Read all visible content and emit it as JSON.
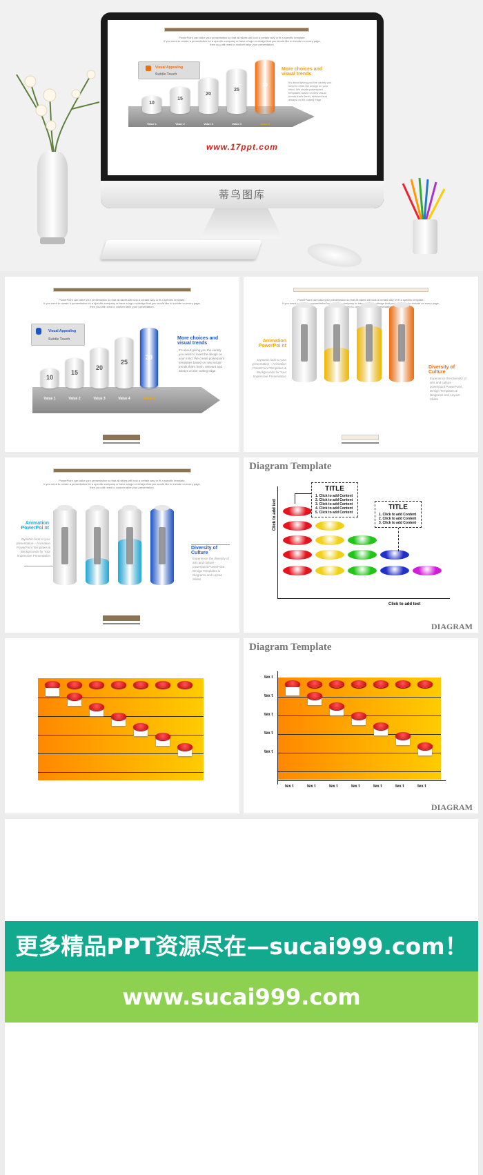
{
  "hero": {
    "watermark_brand": "www.17ppt.com",
    "monitor_chin_text": "蒂鸟图库",
    "slide": {
      "intro_lines": [
        "PowerPoint can tailor your presentation so that all slides will look a certain way or fit a specific template.",
        "If you need to create a presentation for a specific company or have a logo or design that you would like to include on every page,",
        "then you will need to custom tailor your presentation."
      ],
      "legend_title": "Visual Appealing",
      "legend_sub": "Subtle Touch",
      "heading": "More choices and visual trends",
      "body": "It's about giving you the variety you need to meet the design on your mind. We create powerpoint templates based on new visual trends that's fresh, relevant and always on the cutting edge.",
      "values": [
        "10",
        "15",
        "20",
        "25",
        "30"
      ],
      "value_labels": [
        "Value 1",
        "Value 2",
        "Value 3",
        "Value 4",
        "Value 5"
      ]
    }
  },
  "panels": {
    "p1": {
      "intro_lines": [
        "PowerPoint can tailor your presentation so that all slides will look a certain way or fit a specific template.",
        "If you need to create a presentation for a specific company or have a logo or design that you would like to include on every page,",
        "then you will need to custom tailor your presentation."
      ],
      "legend_title": "Visual Appealing",
      "legend_sub": "Subtle Touch",
      "heading": "More choices and visual trends",
      "body": "It's about giving you the variety you need to meet the design on your mind. We create powerpoint templates based on new visual trends that's fresh, relevant and always on the cutting edge.",
      "values": [
        "10",
        "15",
        "20",
        "25",
        "30"
      ],
      "value_labels": [
        "Value 1",
        "Value 2",
        "Value 3",
        "Value 4",
        "Value 5"
      ]
    },
    "p2": {
      "left_heading": "Animation PowerPoi nt",
      "left_body": "Dynamic look to your presentation – Animation PowerPoint Templates & Backgrounds for Your Impressive Presentation",
      "right_heading": "Diversity of Culture",
      "right_body": "Experience the diversity of arts and culture - powerpoint PowerPoint Design Templates & Diagrams and Layout Slides",
      "fill_levels": [
        0,
        0.45,
        0.72,
        1.0
      ],
      "fill_colors": [
        "#dddddd",
        "#f1b800",
        "#f1b800",
        "#ef6d0d"
      ]
    },
    "p3": {
      "left_heading": "Animation PowerPoi nt",
      "left_body": "Dynamic look to your presentation – Animation PowerPoint Templates & Backgrounds for Your Impressive Presentation",
      "right_heading": "Diversity of Culture",
      "right_body": "Experience the diversity of arts and culture - powerpoint PowerPoint Design Templates & Diagrams and Layout Slides",
      "fill_levels": [
        0,
        0.35,
        0.6,
        1.0
      ],
      "fill_colors": [
        "#dddddd",
        "#21a9d9",
        "#21a9d9",
        "#1c54c7"
      ]
    },
    "p4": {
      "title": "Diagram Template",
      "footer": "DIAGRAM",
      "ylabel": "Click to add text",
      "xlabel": "Click to add text",
      "box1_title": "TITLE",
      "box1_items": [
        "1. Click to add Content",
        "2. Click to add Content",
        "3. Click to add Content",
        "4. Click to add Content",
        "5. Click to add Content"
      ],
      "box2_title": "TITLE",
      "box2_items": [
        "1. Click to add Content",
        "2. Click to add Content",
        "3. Click to add Content"
      ]
    },
    "p6": {
      "title": "Diagram Template",
      "footer": "DIAGRAM",
      "y_ticks": [
        "tex t",
        "tex t",
        "tex t",
        "tex t",
        "tex t"
      ],
      "x_ticks": [
        "tex t",
        "tex t",
        "tex t",
        "tex t",
        "tex t",
        "tex t",
        "tex t"
      ]
    }
  },
  "banners": {
    "line1": "更多精品PPT资源尽在—sucai999.com！",
    "line2": "www.sucai999.com"
  },
  "colors": {
    "teal": "#13a98e",
    "green": "#8ed04f",
    "orange": "#ef6d0d",
    "blue": "#1c54c7"
  }
}
